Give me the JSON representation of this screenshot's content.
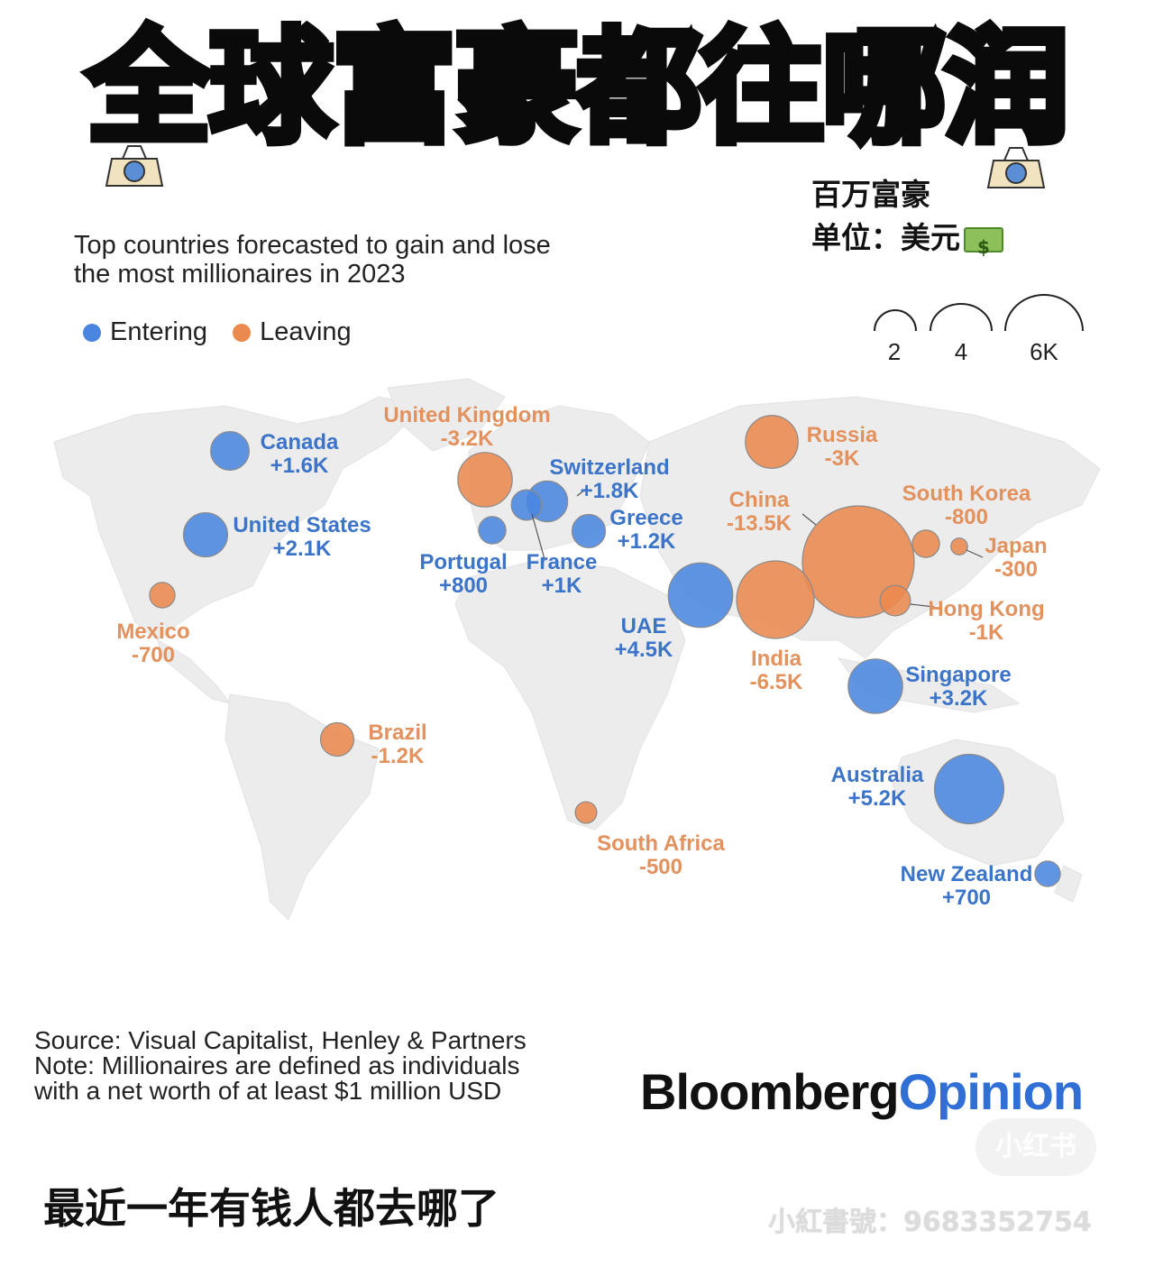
{
  "header": {
    "title": "全球富豪都往哪润",
    "unit_line1": "百万富豪",
    "unit_line2": "单位：美元"
  },
  "chart_data": {
    "type": "bubble-map",
    "title": "Top countries forecasted to gain and lose\nthe most millionaires in 2023",
    "legend": [
      {
        "name": "Entering",
        "color": "#4a86e0"
      },
      {
        "name": "Leaving",
        "color": "#ea8a4f"
      }
    ],
    "size_scale": {
      "labels": [
        "2",
        "4",
        "6K"
      ],
      "values": [
        2000,
        4000,
        6000
      ]
    },
    "countries": [
      {
        "name": "Canada",
        "value_label": "+1.6K",
        "value": 1600,
        "type": "entering"
      },
      {
        "name": "United States",
        "value_label": "+2.1K",
        "value": 2100,
        "type": "entering"
      },
      {
        "name": "Mexico",
        "value_label": "-700",
        "value": -700,
        "type": "leaving"
      },
      {
        "name": "Brazil",
        "value_label": "-1.2K",
        "value": -1200,
        "type": "leaving"
      },
      {
        "name": "United Kingdom",
        "value_label": "-3.2K",
        "value": -3200,
        "type": "leaving"
      },
      {
        "name": "Switzerland",
        "value_label": "+1.8K",
        "value": 1800,
        "type": "entering"
      },
      {
        "name": "Portugal",
        "value_label": "+800",
        "value": 800,
        "type": "entering"
      },
      {
        "name": "France",
        "value_label": "+1K",
        "value": 1000,
        "type": "entering"
      },
      {
        "name": "Greece",
        "value_label": "+1.2K",
        "value": 1200,
        "type": "entering"
      },
      {
        "name": "Russia",
        "value_label": "-3K",
        "value": -3000,
        "type": "leaving"
      },
      {
        "name": "China",
        "value_label": "-13.5K",
        "value": -13500,
        "type": "leaving"
      },
      {
        "name": "South Korea",
        "value_label": "-800",
        "value": -800,
        "type": "leaving"
      },
      {
        "name": "Japan",
        "value_label": "-300",
        "value": -300,
        "type": "leaving"
      },
      {
        "name": "Hong Kong",
        "value_label": "-1K",
        "value": -1000,
        "type": "leaving"
      },
      {
        "name": "UAE",
        "value_label": "+4.5K",
        "value": 4500,
        "type": "entering"
      },
      {
        "name": "India",
        "value_label": "-6.5K",
        "value": -6500,
        "type": "leaving"
      },
      {
        "name": "Singapore",
        "value_label": "+3.2K",
        "value": 3200,
        "type": "entering"
      },
      {
        "name": "Australia",
        "value_label": "+5.2K",
        "value": 5200,
        "type": "entering"
      },
      {
        "name": "South Africa",
        "value_label": "-500",
        "value": -500,
        "type": "leaving"
      },
      {
        "name": "New Zealand",
        "value_label": "+700",
        "value": 700,
        "type": "entering"
      }
    ]
  },
  "footer": {
    "source": "Source: Visual Capitalist, Henley & Partners",
    "note1": "Note: Millionaires are defined as individuals",
    "note2": "with a net worth of at least $1 million USD",
    "brand_bold": "Bloomberg",
    "brand_accent": "Opinion"
  },
  "caption": "最近一年有钱人都去哪了",
  "watermark": {
    "bubble": "小红书",
    "id": "小紅書號：9683352754"
  },
  "colors": {
    "entering": "#4a86e0",
    "leaving": "#ea8a4f",
    "entering_text": "#3b74c9",
    "leaving_text": "#e3915d",
    "land": "#ececec"
  }
}
